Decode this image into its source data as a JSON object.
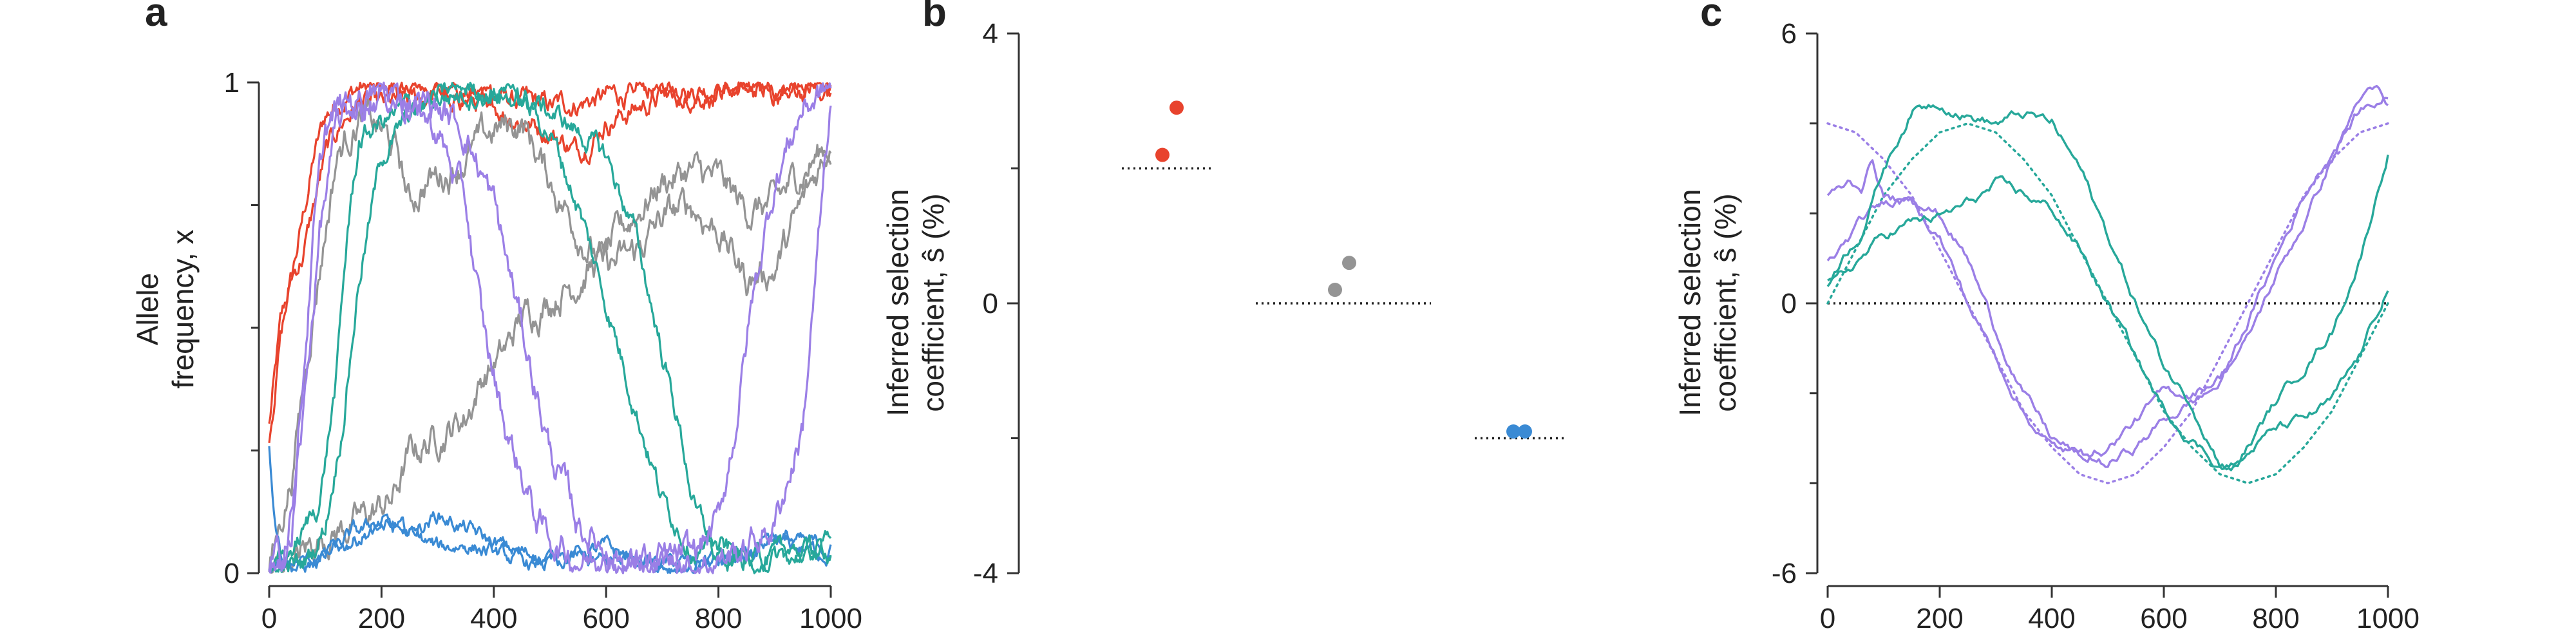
{
  "chart_data": [
    {
      "panel": "a",
      "type": "line",
      "ylabel_lines": [
        "Allele",
        "frequency, x"
      ],
      "xlim": [
        0,
        1000
      ],
      "ylim": [
        0,
        1
      ],
      "xticks": [
        0,
        200,
        400,
        600,
        800,
        1000
      ],
      "yticks": [
        0,
        1
      ],
      "ytick_labels": [
        "0",
        "1"
      ],
      "yminor_ticks": [
        0.25,
        0.5,
        0.75
      ],
      "series": [
        {
          "color": "#e8432d",
          "noise": 0.014,
          "x": [
            0,
            20,
            40,
            60,
            80,
            100,
            130,
            160,
            200,
            300,
            400,
            500,
            600,
            700,
            800,
            900,
            1000
          ],
          "y": [
            0.3,
            0.5,
            0.6,
            0.72,
            0.85,
            0.93,
            0.97,
            0.99,
            0.99,
            0.985,
            0.97,
            0.95,
            0.97,
            0.99,
            0.99,
            0.985,
            0.99
          ]
        },
        {
          "color": "#e8432d",
          "noise": 0.014,
          "x": [
            0,
            20,
            40,
            60,
            80,
            100,
            130,
            160,
            200,
            250,
            300,
            400,
            500,
            550,
            600,
            700,
            800,
            900,
            1000
          ],
          "y": [
            0.28,
            0.48,
            0.6,
            0.65,
            0.75,
            0.85,
            0.92,
            0.96,
            0.95,
            0.96,
            0.98,
            0.95,
            0.9,
            0.86,
            0.92,
            0.97,
            0.98,
            0.98,
            0.99
          ]
        },
        {
          "color": "#949494",
          "noise": 0.02,
          "x": [
            0,
            50,
            100,
            150,
            180,
            220,
            250,
            300,
            350,
            380,
            420,
            450,
            500,
            550,
            600,
            650,
            700,
            750,
            800,
            850,
            900,
            950,
            1000
          ],
          "y": [
            0.0,
            0.03,
            0.08,
            0.1,
            0.12,
            0.15,
            0.24,
            0.28,
            0.32,
            0.4,
            0.45,
            0.52,
            0.56,
            0.6,
            0.65,
            0.73,
            0.8,
            0.82,
            0.8,
            0.74,
            0.75,
            0.82,
            0.88
          ]
        },
        {
          "color": "#949494",
          "noise": 0.02,
          "x": [
            0,
            40,
            80,
            120,
            160,
            200,
            230,
            250,
            280,
            320,
            350,
            400,
            450,
            500,
            550,
            600,
            650,
            700,
            750,
            800,
            850,
            900,
            950,
            1000
          ],
          "y": [
            0.0,
            0.2,
            0.55,
            0.85,
            0.93,
            0.9,
            0.85,
            0.75,
            0.8,
            0.82,
            0.85,
            0.9,
            0.92,
            0.8,
            0.7,
            0.62,
            0.65,
            0.72,
            0.75,
            0.7,
            0.6,
            0.62,
            0.75,
            0.88
          ]
        },
        {
          "color": "#3a8ad4",
          "noise": 0.01,
          "x": [
            0,
            10,
            20,
            40,
            60,
            80,
            100,
            120,
            150,
            200,
            250,
            300,
            350,
            400,
            450,
            500,
            550,
            600,
            650,
            700,
            750,
            800,
            850,
            900,
            950,
            1000
          ],
          "y": [
            0.25,
            0.12,
            0.05,
            0.02,
            0.01,
            0.02,
            0.03,
            0.05,
            0.07,
            0.1,
            0.08,
            0.12,
            0.09,
            0.06,
            0.04,
            0.03,
            0.04,
            0.05,
            0.03,
            0.02,
            0.02,
            0.02,
            0.03,
            0.06,
            0.05,
            0.04
          ]
        },
        {
          "color": "#3a8ad4",
          "noise": 0.01,
          "x": [
            0,
            50,
            100,
            150,
            200,
            250,
            300,
            350,
            400,
            450,
            500,
            550,
            600,
            650,
            700,
            750,
            800,
            850,
            900,
            950,
            1000
          ],
          "y": [
            0.0,
            0.02,
            0.03,
            0.08,
            0.1,
            0.08,
            0.05,
            0.06,
            0.04,
            0.02,
            0.02,
            0.03,
            0.02,
            0.04,
            0.02,
            0.01,
            0.02,
            0.04,
            0.08,
            0.06,
            0.05
          ]
        },
        {
          "color": "#27a89a",
          "noise": 0.014,
          "x": [
            0,
            30,
            60,
            80,
            100,
            130,
            160,
            200,
            250,
            300,
            350,
            400,
            450,
            500,
            550,
            600,
            650,
            700,
            730,
            760,
            800,
            850,
            900,
            1000
          ],
          "y": [
            0.0,
            0.01,
            0.02,
            0.05,
            0.1,
            0.3,
            0.6,
            0.85,
            0.93,
            0.97,
            0.98,
            0.98,
            0.97,
            0.94,
            0.9,
            0.85,
            0.7,
            0.45,
            0.3,
            0.12,
            0.05,
            0.03,
            0.03,
            0.05
          ]
        },
        {
          "color": "#27a89a",
          "noise": 0.014,
          "x": [
            0,
            30,
            60,
            90,
            120,
            140,
            160,
            200,
            250,
            300,
            350,
            400,
            450,
            500,
            550,
            600,
            650,
            700,
            750,
            800,
            900,
            1000
          ],
          "y": [
            0.0,
            0.03,
            0.08,
            0.15,
            0.4,
            0.7,
            0.88,
            0.92,
            0.95,
            0.97,
            0.99,
            0.98,
            0.96,
            0.9,
            0.75,
            0.55,
            0.35,
            0.15,
            0.06,
            0.03,
            0.03,
            0.05
          ]
        },
        {
          "color": "#9b7fe6",
          "noise": 0.02,
          "x": [
            0,
            20,
            40,
            60,
            80,
            100,
            130,
            160,
            200,
            250,
            300,
            350,
            380,
            420,
            450,
            480,
            520,
            560,
            600,
            650,
            700,
            750,
            800,
            850,
            900,
            950,
            1000
          ],
          "y": [
            0.0,
            0.02,
            0.1,
            0.4,
            0.7,
            0.9,
            0.95,
            0.97,
            0.98,
            0.96,
            0.9,
            0.75,
            0.5,
            0.3,
            0.2,
            0.1,
            0.05,
            0.03,
            0.02,
            0.02,
            0.02,
            0.02,
            0.03,
            0.05,
            0.1,
            0.3,
            0.95
          ]
        },
        {
          "color": "#9b7fe6",
          "noise": 0.02,
          "x": [
            0,
            30,
            60,
            90,
            120,
            150,
            200,
            250,
            300,
            350,
            400,
            440,
            470,
            500,
            550,
            600,
            650,
            700,
            750,
            800,
            830,
            860,
            900,
            950,
            1000
          ],
          "y": [
            0.0,
            0.05,
            0.3,
            0.7,
            0.9,
            0.95,
            0.98,
            0.97,
            0.95,
            0.9,
            0.75,
            0.55,
            0.4,
            0.25,
            0.1,
            0.05,
            0.02,
            0.02,
            0.03,
            0.1,
            0.3,
            0.55,
            0.8,
            0.95,
            0.99
          ]
        }
      ]
    },
    {
      "panel": "b",
      "type": "scatter",
      "ylabel_lines": [
        "Inferred selection",
        "coefficient, ŝ (%)"
      ],
      "ylim": [
        -4,
        4
      ],
      "yticks": [
        -4,
        0,
        4
      ],
      "ytick_labels": [
        "-4",
        "0",
        "4"
      ],
      "yminor_ticks": [
        -2,
        2
      ],
      "groups": [
        {
          "color": "#e8432d",
          "true_value": 2.0,
          "points": [
            2.2,
            2.9
          ]
        },
        {
          "color": "#949494",
          "true_value": 0.0,
          "points": [
            0.2,
            0.6
          ]
        },
        {
          "color": "#3a8ad4",
          "true_value": -2.0,
          "points": [
            -1.9,
            -1.9
          ]
        }
      ]
    },
    {
      "panel": "c",
      "type": "line",
      "ylabel_lines": [
        "Inferred selection",
        "coefficient, ŝ (%)"
      ],
      "xlim": [
        0,
        1000
      ],
      "ylim": [
        -6,
        6
      ],
      "xticks": [
        0,
        200,
        400,
        600,
        800,
        1000
      ],
      "yticks": [
        -6,
        0,
        6
      ],
      "ytick_labels": [
        "-6",
        "0",
        "6"
      ],
      "yminor_ticks": [
        -4,
        -2,
        2,
        4
      ],
      "true_curves": [
        {
          "color": "#9b7fe6",
          "x": [
            0,
            50,
            100,
            150,
            200,
            250,
            300,
            350,
            400,
            450,
            500,
            550,
            600,
            650,
            700,
            750,
            800,
            850,
            900,
            950,
            1000
          ],
          "y": [
            4.0,
            3.8,
            3.2,
            2.4,
            1.2,
            0.0,
            -1.2,
            -2.4,
            -3.2,
            -3.8,
            -4.0,
            -3.8,
            -3.2,
            -2.4,
            -1.2,
            0.0,
            1.2,
            2.4,
            3.2,
            3.8,
            4.0
          ]
        },
        {
          "color": "#27a89a",
          "x": [
            0,
            50,
            100,
            150,
            200,
            250,
            300,
            350,
            400,
            450,
            500,
            550,
            600,
            650,
            700,
            750,
            800,
            850,
            900,
            950,
            1000
          ],
          "y": [
            0.0,
            1.2,
            2.4,
            3.2,
            3.8,
            4.0,
            3.8,
            3.2,
            2.4,
            1.2,
            0.0,
            -1.2,
            -2.4,
            -3.2,
            -3.8,
            -4.0,
            -3.8,
            -3.2,
            -2.4,
            -1.2,
            0.0
          ]
        }
      ],
      "series": [
        {
          "color": "#9b7fe6",
          "x": [
            0,
            20,
            40,
            60,
            80,
            100,
            150,
            200,
            250,
            300,
            350,
            400,
            450,
            500,
            550,
            600,
            650,
            700,
            750,
            800,
            850,
            900,
            950,
            980,
            1000
          ],
          "y": [
            2.4,
            2.5,
            2.7,
            2.6,
            3.2,
            2.4,
            2.2,
            1.5,
            0.0,
            -1.2,
            -2.4,
            -3.2,
            -3.4,
            -3.2,
            -2.6,
            -2.0,
            -2.0,
            -1.6,
            -0.8,
            0.6,
            1.8,
            3.2,
            4.6,
            4.7,
            4.3
          ]
        },
        {
          "color": "#9b7fe6",
          "x": [
            0,
            30,
            60,
            100,
            150,
            200,
            250,
            300,
            350,
            400,
            450,
            500,
            550,
            600,
            650,
            700,
            750,
            800,
            850,
            900,
            950,
            1000
          ],
          "y": [
            0.9,
            1.3,
            1.8,
            2.2,
            2.5,
            2.0,
            1.0,
            -0.6,
            -2.0,
            -3.0,
            -3.4,
            -3.6,
            -3.2,
            -2.6,
            -2.2,
            -1.8,
            -0.4,
            1.0,
            2.4,
            3.4,
            4.3,
            4.6
          ]
        },
        {
          "color": "#27a89a",
          "x": [
            0,
            30,
            60,
            100,
            150,
            200,
            250,
            300,
            350,
            400,
            450,
            500,
            550,
            600,
            650,
            700,
            730,
            760,
            800,
            850,
            900,
            950,
            1000
          ],
          "y": [
            0.5,
            1.1,
            1.6,
            3.0,
            4.3,
            4.5,
            4.2,
            4.0,
            4.2,
            4.0,
            3.0,
            1.5,
            0.0,
            -1.4,
            -2.2,
            -3.5,
            -3.6,
            -3.2,
            -2.8,
            -2.6,
            -2.2,
            -1.2,
            0.4
          ]
        },
        {
          "color": "#27a89a",
          "x": [
            0,
            30,
            60,
            100,
            150,
            200,
            250,
            300,
            350,
            400,
            450,
            500,
            550,
            600,
            650,
            700,
            730,
            760,
            800,
            850,
            900,
            950,
            1000
          ],
          "y": [
            0.3,
            0.6,
            1.0,
            1.5,
            1.8,
            1.9,
            2.2,
            2.6,
            2.4,
            2.1,
            1.2,
            0.0,
            -1.2,
            -2.4,
            -3.0,
            -3.6,
            -3.6,
            -3.0,
            -2.2,
            -1.4,
            -0.6,
            1.0,
            3.4
          ]
        }
      ]
    }
  ]
}
